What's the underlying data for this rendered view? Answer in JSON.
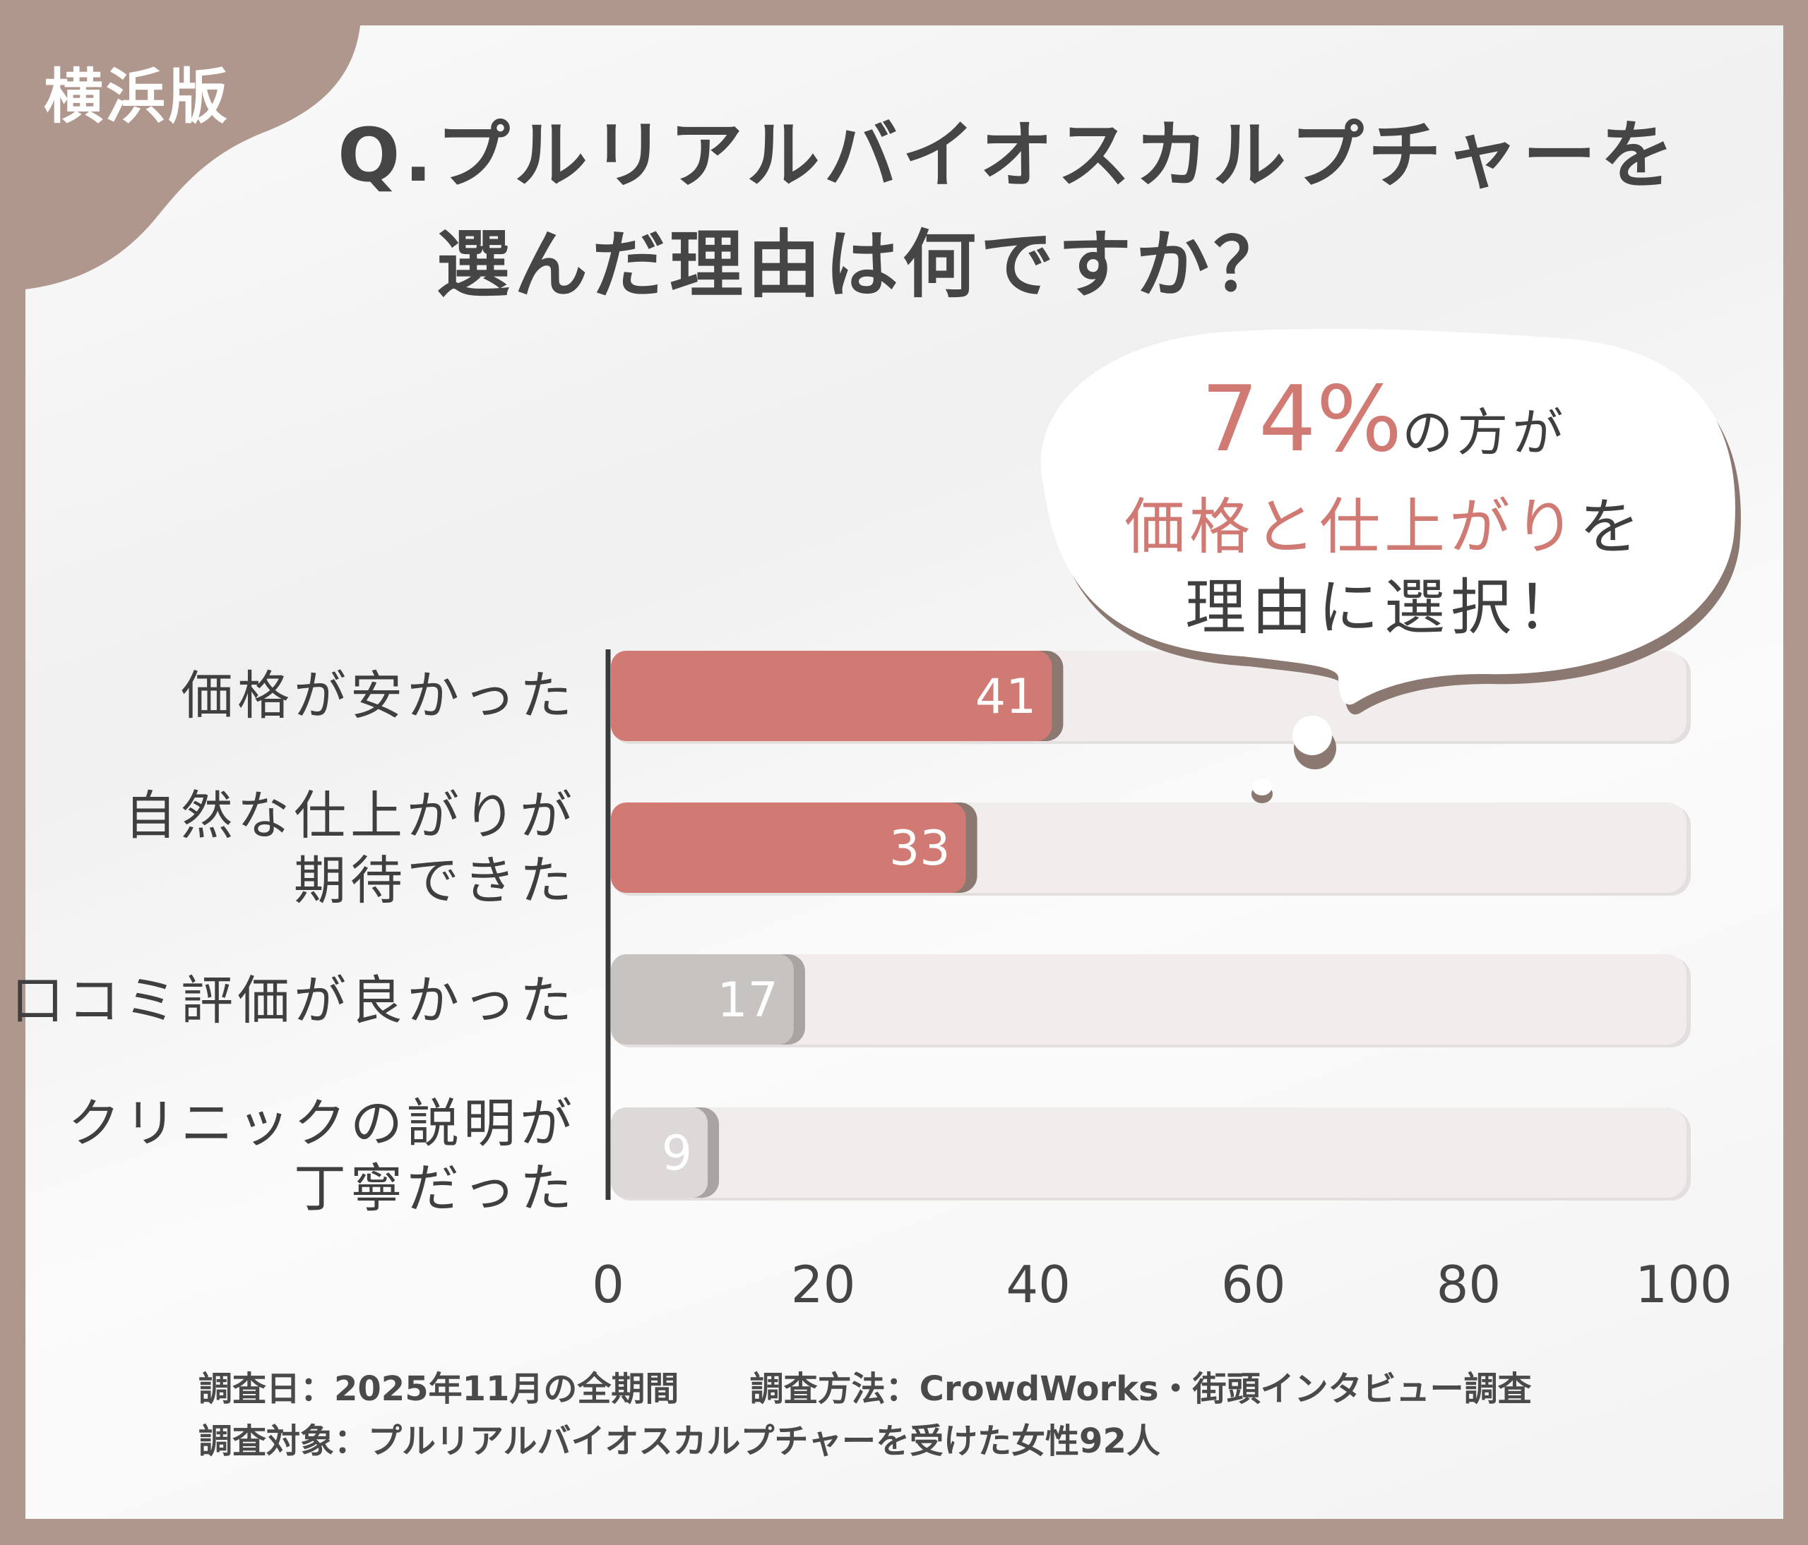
{
  "tag": "横浜版",
  "title": {
    "line1": "Q.プルリアルバイオスカルプチャーを",
    "line2": "選んだ理由は何ですか？"
  },
  "callout": {
    "percent": "74%",
    "line1_rest": "の方が",
    "line2_highlight": "価格と仕上がり",
    "line2_rest": "を",
    "line3": "理由に選択！"
  },
  "chart_data": {
    "type": "bar",
    "orientation": "horizontal",
    "categories": [
      "価格が安かった",
      "自然な仕上がりが\n期待できた",
      "口コミ評価が良かった",
      "クリニックの説明が\n丁寧だった"
    ],
    "values": [
      41,
      33,
      17,
      9
    ],
    "xlim": [
      0,
      100
    ],
    "xticks": [
      "0",
      "20",
      "40",
      "60",
      "80",
      "100"
    ],
    "grid": false,
    "colors": [
      "#d17a74",
      "#d17a74",
      "#c7c3c1",
      "#dcd9d8"
    ],
    "track_color": "#f1edec"
  },
  "footer": {
    "date": "調査日：2025年11月の全期間",
    "method": "調査方法：CrowdWorks・街頭インタビュー調査",
    "target": "調査対象：プルリアルバイオスカルプチャーを受けた女性92人"
  },
  "colors": {
    "frame": "#b0978d",
    "accent": "#d17a74",
    "text": "#454545"
  }
}
